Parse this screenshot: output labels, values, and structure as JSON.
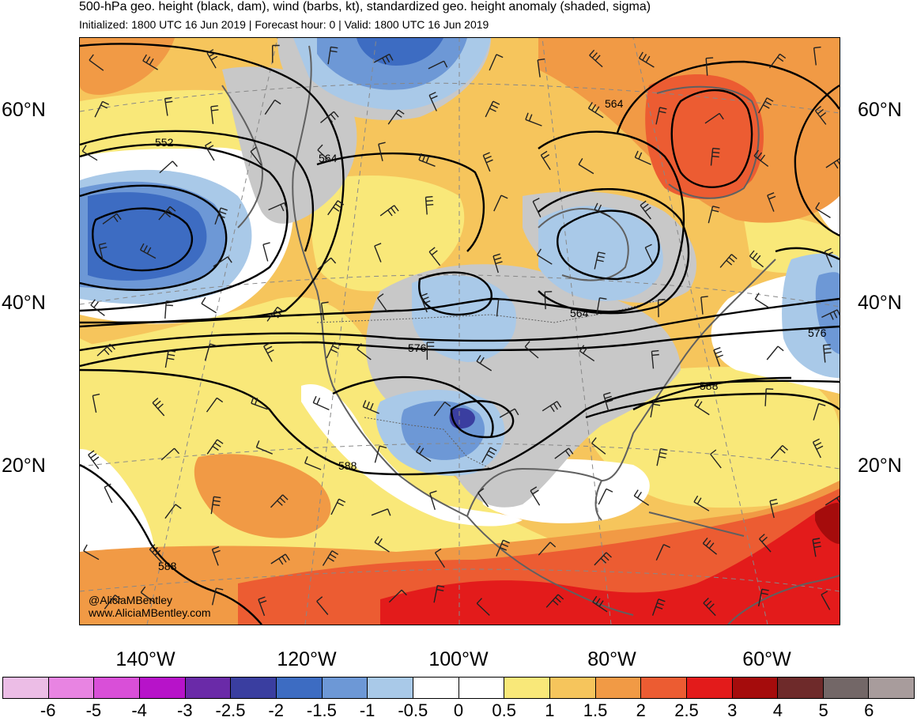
{
  "header": {
    "title": "500-hPa geo. height (black, dam), wind (barbs, kt), standardized geo. height anomaly (shaded, sigma)",
    "subtitle": "Initialized: 1800 UTC 16 Jun 2019 | Forecast hour: 0 | Valid: 1800 UTC 16 Jun 2019"
  },
  "latitude_labels": [
    "60°N",
    "40°N",
    "20°N"
  ],
  "longitude_labels": [
    "140°W",
    "120°W",
    "100°W",
    "80°W",
    "60°W"
  ],
  "contour_labels": [
    "552",
    "564",
    "564",
    "564",
    "576",
    "576",
    "588",
    "588",
    "588"
  ],
  "credits": {
    "handle": "@AliciaMBentley",
    "website": "www.AliciaMBentley.com"
  },
  "colorbar": {
    "ticks": [
      "-6",
      "-5",
      "-4",
      "-3",
      "-2.5",
      "-2",
      "-1.5",
      "-1",
      "-0.5",
      "0",
      "0.5",
      "1",
      "1.5",
      "2",
      "2.5",
      "3",
      "4",
      "5",
      "6"
    ],
    "colors": [
      "#ecbde6",
      "#e884e2",
      "#d94fd8",
      "#b713c9",
      "#6a2aa8",
      "#3a3ea0",
      "#3d6cc2",
      "#6d98d6",
      "#a9c9e8",
      "#ffffff",
      "#ffffff",
      "#f9e879",
      "#f6c55c",
      "#f19a45",
      "#ec5c32",
      "#e31b1b",
      "#a50c0c",
      "#6e2a2a",
      "#736767",
      "#a89c9c"
    ]
  },
  "layer_colors": {
    "gray": "#c8c8c8",
    "neg_light": "#a9c9e8",
    "neg_mid": "#6d98d6",
    "neg_strong": "#3d6cc2",
    "neg_deep": "#3a3ea0",
    "pos_light": "#f9e879",
    "pos_mid": "#f6c55c",
    "pos_orange": "#f19a45",
    "pos_red_orange": "#ec5c32",
    "pos_red": "#e31b1b",
    "pos_dark": "#a50c0c",
    "coast": "#606060"
  }
}
